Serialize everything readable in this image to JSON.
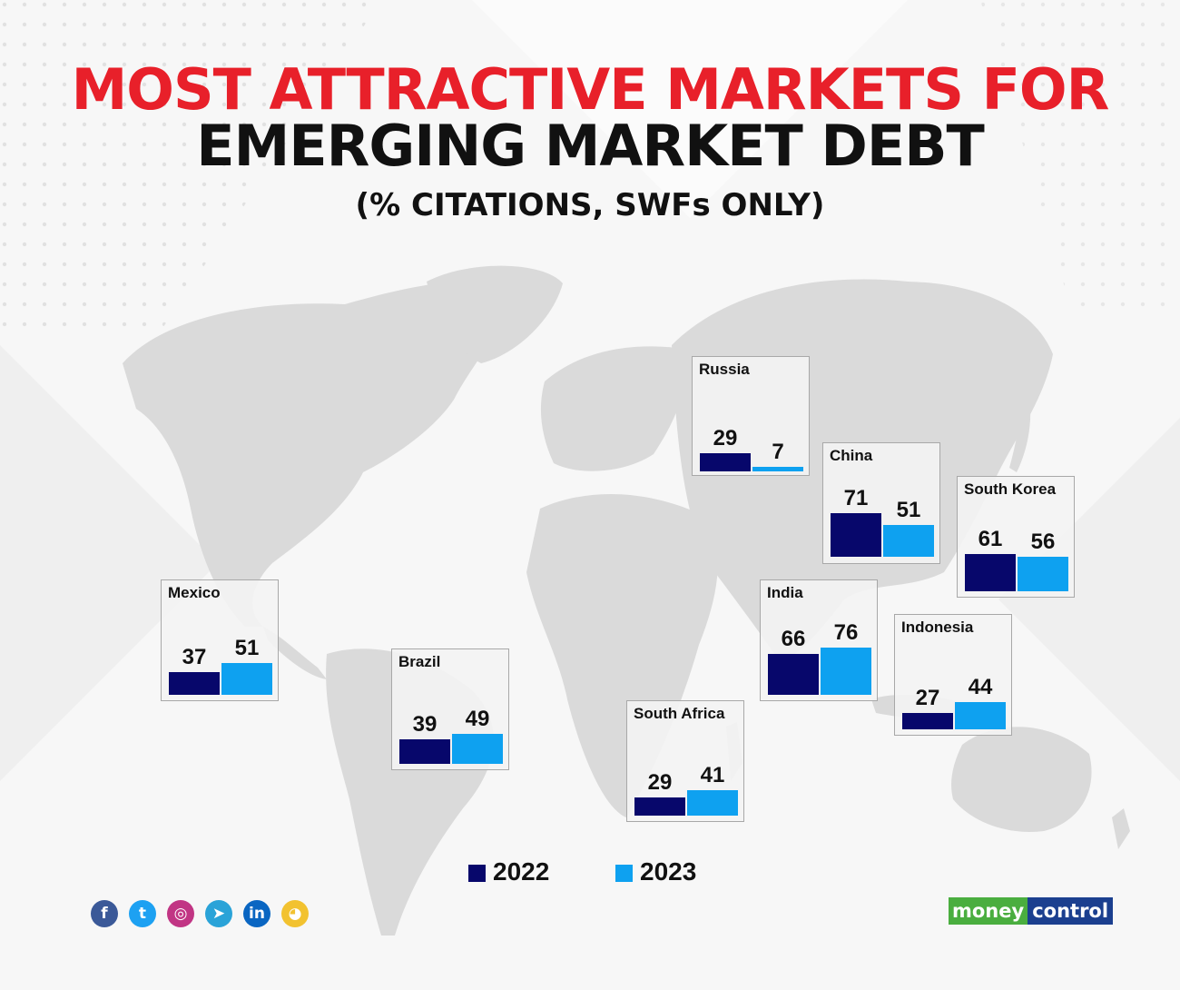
{
  "header": {
    "title_line1": "MOST ATTRACTIVE MARKETS FOR",
    "title_line2": "EMERGING MARKET DEBT",
    "subtitle": "(% CITATIONS, SWFs ONLY)",
    "title_color": "#e8202a"
  },
  "chart_data": {
    "type": "bar",
    "title": "MOST ATTRACTIVE MARKETS FOR EMERGING MARKET DEBT",
    "subtitle": "(% CITATIONS, SWFs ONLY)",
    "series_names": [
      "2022",
      "2023"
    ],
    "series_colors": [
      "#07076b",
      "#0ea1f0"
    ],
    "legend_placement": "bottom-center",
    "grid": false,
    "markets": [
      {
        "name": "Russia",
        "values": [
          29,
          7
        ]
      },
      {
        "name": "China",
        "values": [
          71,
          51
        ]
      },
      {
        "name": "South Korea",
        "values": [
          61,
          56
        ]
      },
      {
        "name": "Mexico",
        "values": [
          37,
          51
        ]
      },
      {
        "name": "India",
        "values": [
          66,
          76
        ]
      },
      {
        "name": "Indonesia",
        "values": [
          27,
          44
        ]
      },
      {
        "name": "Brazil",
        "values": [
          39,
          49
        ]
      },
      {
        "name": "South Africa",
        "values": [
          29,
          41
        ]
      }
    ]
  },
  "footer": {
    "social_icons": [
      "facebook-icon",
      "twitter-icon",
      "instagram-icon",
      "telegram-icon",
      "linkedin-icon",
      "koo-icon"
    ],
    "social_glyphs": [
      "f",
      "t",
      "◎",
      "➤",
      "in",
      "◕"
    ],
    "social_colors": [
      "#3b5998",
      "#1da1f2",
      "#c13584",
      "#2aa3d8",
      "#0a66c2",
      "#f2c230"
    ],
    "brand_part1": "money",
    "brand_part2": "control"
  }
}
